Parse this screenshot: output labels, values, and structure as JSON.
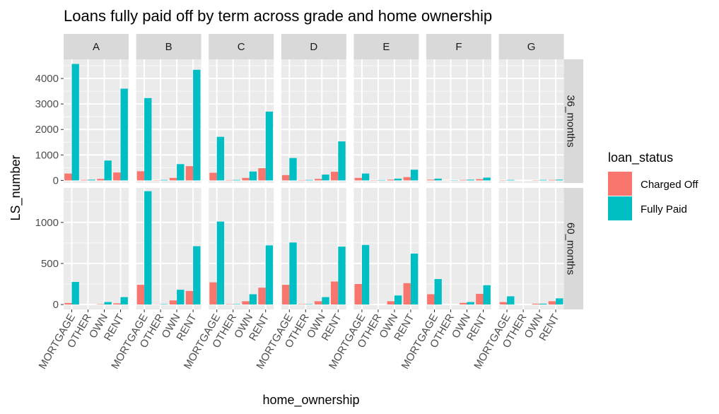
{
  "chart_data": {
    "type": "bar",
    "title": "Loans fully paid off by term across grade and home ownership",
    "xlabel": "home_ownership",
    "ylabel": "LS_number",
    "columns": [
      "A",
      "B",
      "C",
      "D",
      "E",
      "F",
      "G"
    ],
    "rows": [
      "36_months",
      "60_months"
    ],
    "categories": [
      "MORTGAGE",
      "OTHER",
      "OWN",
      "RENT"
    ],
    "row_ylim": [
      [
        -100,
        4750
      ],
      [
        -60,
        1420
      ]
    ],
    "row_yticks": [
      [
        0,
        1000,
        2000,
        3000,
        4000
      ],
      [
        0,
        500,
        1000
      ]
    ],
    "legend": {
      "title": "loan_status",
      "placement": "right",
      "entries": [
        {
          "name": "Charged Off",
          "color": "#F8766D"
        },
        {
          "name": "Fully Paid",
          "color": "#00BFC4"
        }
      ]
    },
    "panels": [
      {
        "column": "A",
        "row": "36_months",
        "charged_off": [
          270,
          20,
          60,
          310
        ],
        "fully_paid": [
          4570,
          30,
          780,
          3600
        ]
      },
      {
        "column": "B",
        "row": "36_months",
        "charged_off": [
          360,
          10,
          100,
          560
        ],
        "fully_paid": [
          3230,
          20,
          640,
          4340
        ]
      },
      {
        "column": "C",
        "row": "36_months",
        "charged_off": [
          300,
          15,
          100,
          480
        ],
        "fully_paid": [
          1710,
          20,
          350,
          2700
        ]
      },
      {
        "column": "D",
        "row": "36_months",
        "charged_off": [
          210,
          15,
          60,
          340
        ],
        "fully_paid": [
          880,
          20,
          230,
          1530
        ]
      },
      {
        "column": "E",
        "row": "36_months",
        "charged_off": [
          100,
          10,
          30,
          130
        ],
        "fully_paid": [
          270,
          15,
          70,
          420
        ]
      },
      {
        "column": "F",
        "row": "36_months",
        "charged_off": [
          30,
          5,
          20,
          50
        ],
        "fully_paid": [
          70,
          10,
          30,
          110
        ]
      },
      {
        "column": "G",
        "row": "36_months",
        "charged_off": [
          10,
          0,
          10,
          20
        ],
        "fully_paid": [
          20,
          0,
          20,
          30
        ]
      },
      {
        "column": "A",
        "row": "60_months",
        "charged_off": [
          18,
          0,
          5,
          14
        ],
        "fully_paid": [
          275,
          0,
          30,
          90
        ]
      },
      {
        "column": "B",
        "row": "60_months",
        "charged_off": [
          240,
          2,
          50,
          165
        ],
        "fully_paid": [
          1380,
          5,
          180,
          710
        ]
      },
      {
        "column": "C",
        "row": "60_months",
        "charged_off": [
          270,
          5,
          40,
          205
        ],
        "fully_paid": [
          1010,
          5,
          125,
          720
        ]
      },
      {
        "column": "D",
        "row": "60_months",
        "charged_off": [
          240,
          5,
          40,
          280
        ],
        "fully_paid": [
          755,
          5,
          90,
          705
        ]
      },
      {
        "column": "E",
        "row": "60_months",
        "charged_off": [
          250,
          0,
          40,
          260
        ],
        "fully_paid": [
          725,
          0,
          110,
          620
        ]
      },
      {
        "column": "F",
        "row": "60_months",
        "charged_off": [
          125,
          0,
          20,
          130
        ],
        "fully_paid": [
          310,
          0,
          30,
          235
        ]
      },
      {
        "column": "G",
        "row": "60_months",
        "charged_off": [
          30,
          0,
          10,
          40
        ],
        "fully_paid": [
          100,
          0,
          10,
          75
        ]
      }
    ]
  }
}
